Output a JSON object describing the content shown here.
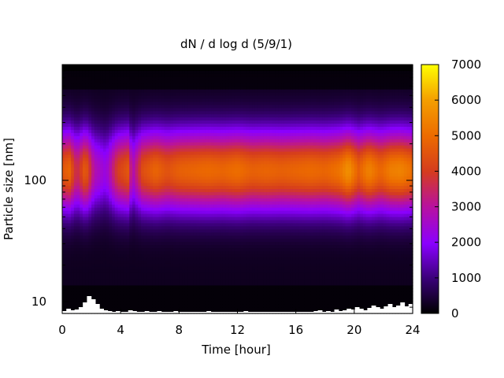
{
  "chart_data": {
    "type": "heatmap",
    "title": "dN / d log d (5/9/1)",
    "xlabel": "Time [hour]",
    "ylabel": "Particle size [nm]",
    "xlim": [
      0,
      24
    ],
    "ylim": [
      8,
      900
    ],
    "yscale": "log",
    "xticks": [
      "0",
      "4",
      "8",
      "12",
      "16",
      "20",
      "24"
    ],
    "yticks": [
      "10",
      "100"
    ],
    "colorbar": {
      "min": 0,
      "max": 7000,
      "ticks": [
        "0",
        "1000",
        "2000",
        "3000",
        "4000",
        "5000",
        "6000",
        "7000"
      ],
      "palette": [
        "#000000",
        "#5a00b4",
        "#9a10f0",
        "#c8289e",
        "#e65a28",
        "#f59a00",
        "#fff000"
      ]
    },
    "mode_diameter_nm": 120,
    "peak_values": [
      {
        "x": 0.0,
        "v": 4300
      },
      {
        "x": 0.5,
        "v": 4600
      },
      {
        "x": 1.0,
        "v": 3200
      },
      {
        "x": 1.6,
        "v": 4500
      },
      {
        "x": 2.2,
        "v": 2600
      },
      {
        "x": 3.0,
        "v": 2000
      },
      {
        "x": 3.8,
        "v": 3800
      },
      {
        "x": 4.5,
        "v": 4300
      },
      {
        "x": 4.8,
        "v": 2400
      },
      {
        "x": 5.5,
        "v": 4100
      },
      {
        "x": 6.4,
        "v": 4600
      },
      {
        "x": 7.2,
        "v": 4200
      },
      {
        "x": 8.0,
        "v": 4500
      },
      {
        "x": 9.0,
        "v": 4600
      },
      {
        "x": 10.0,
        "v": 4700
      },
      {
        "x": 11.0,
        "v": 4600
      },
      {
        "x": 12.0,
        "v": 4800
      },
      {
        "x": 13.0,
        "v": 4500
      },
      {
        "x": 14.0,
        "v": 4600
      },
      {
        "x": 15.0,
        "v": 4500
      },
      {
        "x": 16.0,
        "v": 4600
      },
      {
        "x": 17.0,
        "v": 4700
      },
      {
        "x": 18.0,
        "v": 4600
      },
      {
        "x": 19.0,
        "v": 4900
      },
      {
        "x": 19.6,
        "v": 5500
      },
      {
        "x": 20.3,
        "v": 4500
      },
      {
        "x": 21.0,
        "v": 5200
      },
      {
        "x": 21.8,
        "v": 4600
      },
      {
        "x": 22.5,
        "v": 5100
      },
      {
        "x": 23.2,
        "v": 5200
      },
      {
        "x": 24.0,
        "v": 4800
      }
    ]
  }
}
